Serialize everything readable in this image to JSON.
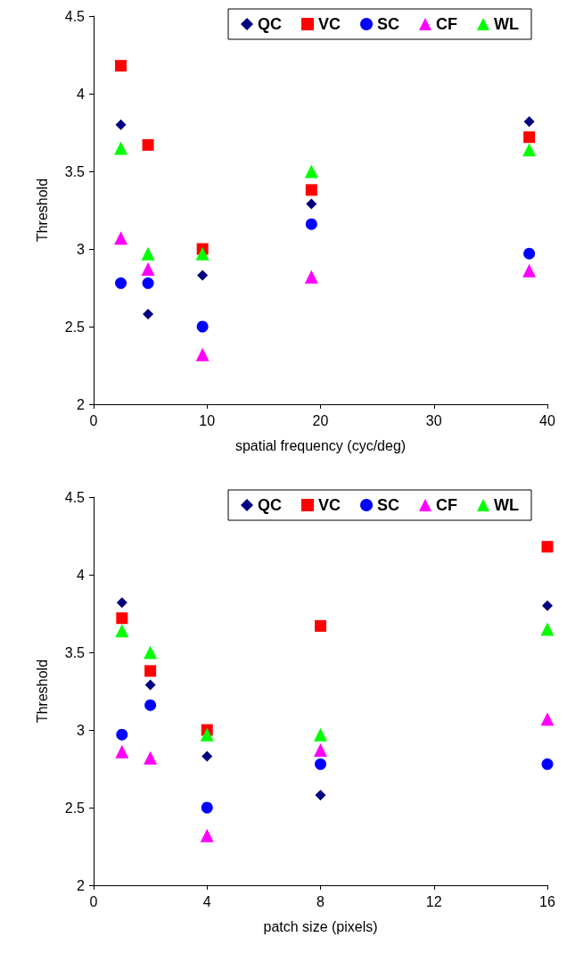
{
  "chart_data": [
    {
      "type": "scatter",
      "xlabel": "spatial frequency (cyc/deg)",
      "ylabel": "Threshold",
      "xlim": [
        0,
        40
      ],
      "xticks": [
        0,
        10,
        20,
        30,
        40
      ],
      "ylim": [
        2,
        4.5
      ],
      "yticks": [
        2,
        2.5,
        3,
        3.5,
        4,
        4.5
      ],
      "grid": false,
      "legend": "top right",
      "series": [
        {
          "name": "QC",
          "color": "#000080",
          "marker": "diamond",
          "x": [
            2.4,
            4.8,
            9.6,
            19.2,
            38.4
          ],
          "values": [
            3.8,
            2.58,
            2.83,
            3.29,
            3.82
          ]
        },
        {
          "name": "VC",
          "color": "#ff0000",
          "marker": "square",
          "x": [
            2.4,
            4.8,
            9.6,
            19.2,
            38.4
          ],
          "values": [
            4.18,
            3.67,
            3.0,
            3.38,
            3.72
          ]
        },
        {
          "name": "SC",
          "color": "#0000ff",
          "marker": "circle",
          "x": [
            2.4,
            4.8,
            9.6,
            19.2,
            38.4
          ],
          "values": [
            2.78,
            2.78,
            2.5,
            3.16,
            2.97
          ]
        },
        {
          "name": "CF",
          "color": "#ff00ff",
          "marker": "triangle",
          "x": [
            2.4,
            4.8,
            9.6,
            19.2,
            38.4
          ],
          "values": [
            3.07,
            2.87,
            2.32,
            2.82,
            2.86
          ]
        },
        {
          "name": "WL",
          "color": "#00ff00",
          "marker": "triangle",
          "x": [
            2.4,
            4.8,
            9.6,
            19.2,
            38.4
          ],
          "values": [
            3.65,
            2.97,
            2.97,
            3.5,
            3.64
          ]
        }
      ]
    },
    {
      "type": "scatter",
      "xlabel": "patch size (pixels)",
      "ylabel": "Threshold",
      "xlim": [
        0,
        16
      ],
      "xticks": [
        0,
        4,
        8,
        12,
        16
      ],
      "ylim": [
        2,
        4.5
      ],
      "yticks": [
        2,
        2.5,
        3,
        3.5,
        4,
        4.5
      ],
      "grid": false,
      "legend": "top right",
      "series": [
        {
          "name": "QC",
          "color": "#000080",
          "marker": "diamond",
          "x": [
            1,
            2,
            4,
            8,
            16
          ],
          "values": [
            3.82,
            3.29,
            2.83,
            2.58,
            3.8
          ]
        },
        {
          "name": "VC",
          "color": "#ff0000",
          "marker": "square",
          "x": [
            1,
            2,
            4,
            8,
            16
          ],
          "values": [
            3.72,
            3.38,
            3.0,
            3.67,
            4.18
          ]
        },
        {
          "name": "SC",
          "color": "#0000ff",
          "marker": "circle",
          "x": [
            1,
            2,
            4,
            8,
            16
          ],
          "values": [
            2.97,
            3.16,
            2.5,
            2.78,
            2.78
          ]
        },
        {
          "name": "CF",
          "color": "#ff00ff",
          "marker": "triangle",
          "x": [
            1,
            2,
            4,
            8,
            16
          ],
          "values": [
            2.86,
            2.82,
            2.32,
            2.87,
            3.07
          ]
        },
        {
          "name": "WL",
          "color": "#00ff00",
          "marker": "triangle",
          "x": [
            1,
            2,
            4,
            8,
            16
          ],
          "values": [
            3.64,
            3.5,
            2.97,
            2.97,
            3.65
          ]
        }
      ]
    }
  ]
}
